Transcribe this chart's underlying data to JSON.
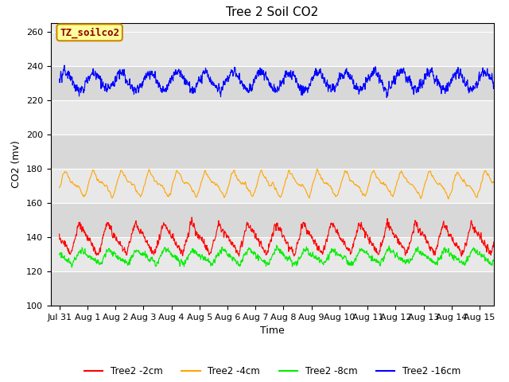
{
  "title": "Tree 2 Soil CO2",
  "ylabel": "CO2 (mv)",
  "xlabel": "Time",
  "ylim": [
    100,
    265
  ],
  "yticks": [
    100,
    120,
    140,
    160,
    180,
    200,
    220,
    240,
    260
  ],
  "xtick_labels": [
    "Jul 31",
    "Aug 1",
    "Aug 2",
    "Aug 3",
    "Aug 4",
    "Aug 5",
    "Aug 6",
    "Aug 7",
    "Aug 8",
    "Aug 9",
    "Aug 10",
    "Aug 11",
    "Aug 12",
    "Aug 13",
    "Aug 14",
    "Aug 15"
  ],
  "xtick_positions": [
    0,
    1,
    2,
    3,
    4,
    5,
    6,
    7,
    8,
    9,
    10,
    11,
    12,
    13,
    14,
    15
  ],
  "colors": {
    "2cm": "#ff0000",
    "4cm": "#ffa500",
    "8cm": "#00ee00",
    "16cm": "#0000ff"
  },
  "legend_labels": [
    "Tree2 -2cm",
    "Tree2 -4cm",
    "Tree2 -8cm",
    "Tree2 -16cm"
  ],
  "label_box_text": "TZ_soilco2",
  "label_box_color": "#ffff99",
  "label_box_edge_color": "#cc8800",
  "bg_color": "#e8e8e8",
  "title_fontsize": 11,
  "axis_label_fontsize": 9,
  "tick_fontsize": 8
}
